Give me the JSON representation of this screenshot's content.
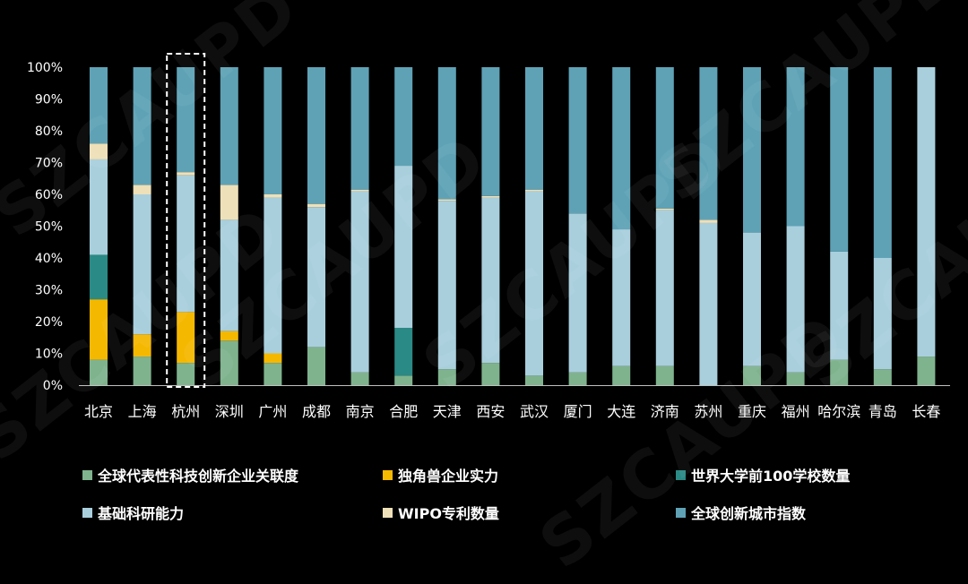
{
  "watermark_text": "SZCAUPD",
  "chart_data": {
    "type": "bar",
    "stacked": true,
    "categories": [
      "北京",
      "上海",
      "杭州",
      "深圳",
      "广州",
      "成都",
      "南京",
      "合肥",
      "天津",
      "西安",
      "武汉",
      "厦门",
      "大连",
      "济南",
      "苏州",
      "重庆",
      "福州",
      "哈尔滨",
      "青岛",
      "长春"
    ],
    "ylim": [
      0,
      100
    ],
    "y_ticks": [
      "0%",
      "10%",
      "20%",
      "30%",
      "40%",
      "50%",
      "60%",
      "70%",
      "80%",
      "90%",
      "100%"
    ],
    "highlighted_category": "杭州",
    "legend_position": "bottom",
    "series": [
      {
        "name": "全球代表性科技创新企业关联度",
        "color": "#7fb38e",
        "values": [
          8,
          9,
          7,
          14,
          7,
          12,
          4,
          3,
          5,
          7,
          3,
          4,
          6,
          6,
          0,
          6,
          4,
          8,
          5,
          9
        ]
      },
      {
        "name": "独角兽企业实力",
        "color": "#f5b800",
        "values": [
          19,
          7,
          16,
          3,
          3,
          0,
          0,
          0,
          0,
          0,
          0,
          0,
          0,
          0,
          0,
          0,
          0,
          0,
          0,
          0
        ]
      },
      {
        "name": "世界大学前100学校数量",
        "color": "#2a8a85",
        "values": [
          14,
          0,
          0,
          0,
          0,
          0,
          0,
          15,
          0,
          0,
          0,
          0,
          0,
          0,
          0,
          0,
          0,
          0,
          0,
          0
        ]
      },
      {
        "name": "基础科研能力",
        "color": "#a9cfdd",
        "values": [
          30,
          44,
          43,
          35,
          49,
          44,
          57,
          51,
          53,
          52,
          58,
          50,
          43,
          49,
          51,
          42,
          46,
          34,
          35,
          91
        ]
      },
      {
        "name": "WIPO专利数量",
        "color": "#eee0b8",
        "values": [
          5,
          3,
          1,
          11,
          1,
          1,
          0.5,
          0,
          0.5,
          0.5,
          0.5,
          0,
          0,
          0.5,
          1,
          0,
          0,
          0,
          0,
          0
        ]
      },
      {
        "name": "全球创新城市指数",
        "color": "#5fa2b6",
        "values": [
          24,
          37,
          33,
          37,
          40,
          43,
          38.5,
          31,
          41.5,
          40.5,
          38.5,
          46,
          51,
          44.5,
          48,
          52,
          50,
          58,
          60,
          0
        ]
      }
    ]
  }
}
